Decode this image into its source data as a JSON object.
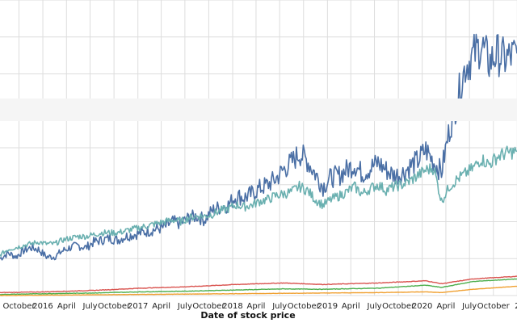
{
  "chart_data": {
    "type": "line",
    "title": "",
    "xlabel": "Date of stock price",
    "ylabel": "",
    "grid": true,
    "legend": "none",
    "x_tick_labels": [
      "October",
      "2016",
      "April",
      "July",
      "October",
      "2017",
      "April",
      "July",
      "October",
      "2018",
      "April",
      "July",
      "October",
      "2019",
      "April",
      "July",
      "October",
      "2020",
      "April",
      "July",
      "October",
      "2"
    ],
    "x_ticks": [
      "2015-10-01",
      "2016-01-01",
      "2016-04-01",
      "2016-07-01",
      "2016-10-01",
      "2017-01-01",
      "2017-04-01",
      "2017-07-01",
      "2017-10-01",
      "2018-01-01",
      "2018-04-01",
      "2018-07-01",
      "2018-10-01",
      "2019-01-01",
      "2019-04-01",
      "2019-07-01",
      "2019-10-01",
      "2020-01-01",
      "2020-04-01",
      "2020-07-01",
      "2020-10-01",
      "2021-01-01"
    ],
    "xlim": [
      "2015-07-20",
      "2020-12-31"
    ],
    "ylim": [
      0,
      8
    ],
    "series": [
      {
        "color": "#4a6fa5",
        "points": [
          [
            "2015-07-20",
            1.0
          ],
          [
            "2015-08-20",
            1.15
          ],
          [
            "2015-09-20",
            1.05
          ],
          [
            "2015-10-15",
            1.2
          ],
          [
            "2015-11-15",
            1.3
          ],
          [
            "2015-12-15",
            1.25
          ],
          [
            "2016-01-15",
            1.05
          ],
          [
            "2016-02-15",
            1.05
          ],
          [
            "2016-03-15",
            1.2
          ],
          [
            "2016-04-15",
            1.3
          ],
          [
            "2016-05-15",
            1.35
          ],
          [
            "2016-06-15",
            1.3
          ],
          [
            "2016-07-15",
            1.45
          ],
          [
            "2016-08-15",
            1.5
          ],
          [
            "2016-09-15",
            1.55
          ],
          [
            "2016-10-15",
            1.5
          ],
          [
            "2016-11-15",
            1.6
          ],
          [
            "2016-12-15",
            1.65
          ],
          [
            "2017-01-15",
            1.7
          ],
          [
            "2017-02-15",
            1.75
          ],
          [
            "2017-03-15",
            1.8
          ],
          [
            "2017-04-15",
            1.85
          ],
          [
            "2017-05-15",
            2.0
          ],
          [
            "2017-06-15",
            1.95
          ],
          [
            "2017-07-15",
            2.1
          ],
          [
            "2017-08-15",
            2.15
          ],
          [
            "2017-09-15",
            2.05
          ],
          [
            "2017-10-15",
            2.3
          ],
          [
            "2017-11-15",
            2.4
          ],
          [
            "2017-12-15",
            2.45
          ],
          [
            "2018-01-15",
            2.7
          ],
          [
            "2018-02-15",
            2.65
          ],
          [
            "2018-03-15",
            2.75
          ],
          [
            "2018-04-15",
            2.9
          ],
          [
            "2018-05-15",
            3.0
          ],
          [
            "2018-06-15",
            3.15
          ],
          [
            "2018-07-15",
            3.4
          ],
          [
            "2018-08-15",
            3.6
          ],
          [
            "2018-09-15",
            3.85
          ],
          [
            "2018-10-15",
            3.65
          ],
          [
            "2018-11-15",
            3.3
          ],
          [
            "2018-12-15",
            2.95
          ],
          [
            "2019-01-15",
            3.2
          ],
          [
            "2019-02-15",
            3.25
          ],
          [
            "2019-03-15",
            3.4
          ],
          [
            "2019-04-15",
            3.55
          ],
          [
            "2019-05-15",
            3.3
          ],
          [
            "2019-06-15",
            3.45
          ],
          [
            "2019-07-15",
            3.6
          ],
          [
            "2019-08-15",
            3.4
          ],
          [
            "2019-09-15",
            3.25
          ],
          [
            "2019-10-15",
            3.3
          ],
          [
            "2019-11-15",
            3.5
          ],
          [
            "2019-12-15",
            3.65
          ],
          [
            "2020-01-15",
            3.95
          ],
          [
            "2020-02-15",
            3.6
          ],
          [
            "2020-03-15",
            3.35
          ],
          [
            "2020-04-15",
            4.5
          ],
          [
            "2020-05-15",
            5.3
          ],
          [
            "2020-06-15",
            6.2
          ],
          [
            "2020-07-15",
            6.5
          ],
          [
            "2020-08-15",
            6.8
          ],
          [
            "2020-09-15",
            6.3
          ],
          [
            "2020-10-15",
            6.55
          ],
          [
            "2020-11-15",
            6.4
          ],
          [
            "2020-12-31",
            6.55
          ]
        ]
      },
      {
        "color": "#6ab0b0",
        "points": [
          [
            "2015-07-20",
            1.1
          ],
          [
            "2015-08-20",
            1.25
          ],
          [
            "2015-09-20",
            1.3
          ],
          [
            "2015-10-15",
            1.35
          ],
          [
            "2015-11-15",
            1.4
          ],
          [
            "2015-12-15",
            1.45
          ],
          [
            "2016-01-15",
            1.4
          ],
          [
            "2016-02-15",
            1.4
          ],
          [
            "2016-03-15",
            1.5
          ],
          [
            "2016-04-15",
            1.55
          ],
          [
            "2016-05-15",
            1.6
          ],
          [
            "2016-06-15",
            1.6
          ],
          [
            "2016-07-15",
            1.65
          ],
          [
            "2016-08-15",
            1.7
          ],
          [
            "2016-09-15",
            1.7
          ],
          [
            "2016-10-15",
            1.7
          ],
          [
            "2016-11-15",
            1.75
          ],
          [
            "2016-12-15",
            1.8
          ],
          [
            "2017-01-15",
            1.85
          ],
          [
            "2017-02-15",
            1.9
          ],
          [
            "2017-03-15",
            1.95
          ],
          [
            "2017-04-15",
            2.0
          ],
          [
            "2017-05-15",
            2.05
          ],
          [
            "2017-06-15",
            2.0
          ],
          [
            "2017-07-15",
            2.1
          ],
          [
            "2017-08-15",
            2.15
          ],
          [
            "2017-09-15",
            2.15
          ],
          [
            "2017-10-15",
            2.2
          ],
          [
            "2017-11-15",
            2.3
          ],
          [
            "2017-12-15",
            2.35
          ],
          [
            "2018-01-15",
            2.45
          ],
          [
            "2018-02-15",
            2.4
          ],
          [
            "2018-03-15",
            2.45
          ],
          [
            "2018-04-15",
            2.55
          ],
          [
            "2018-05-15",
            2.6
          ],
          [
            "2018-06-15",
            2.7
          ],
          [
            "2018-07-15",
            2.75
          ],
          [
            "2018-08-15",
            2.8
          ],
          [
            "2018-09-15",
            2.95
          ],
          [
            "2018-10-15",
            2.85
          ],
          [
            "2018-11-15",
            2.6
          ],
          [
            "2018-12-15",
            2.45
          ],
          [
            "2019-01-15",
            2.6
          ],
          [
            "2019-02-15",
            2.7
          ],
          [
            "2019-03-15",
            2.8
          ],
          [
            "2019-04-15",
            2.95
          ],
          [
            "2019-05-15",
            2.75
          ],
          [
            "2019-06-15",
            2.9
          ],
          [
            "2019-07-15",
            3.0
          ],
          [
            "2019-08-15",
            2.85
          ],
          [
            "2019-09-15",
            2.95
          ],
          [
            "2019-10-15",
            3.0
          ],
          [
            "2019-11-15",
            3.1
          ],
          [
            "2019-12-15",
            3.25
          ],
          [
            "2020-01-15",
            3.4
          ],
          [
            "2020-02-15",
            3.45
          ],
          [
            "2020-03-15",
            2.55
          ],
          [
            "2020-04-15",
            2.95
          ],
          [
            "2020-05-15",
            3.15
          ],
          [
            "2020-06-15",
            3.3
          ],
          [
            "2020-07-15",
            3.45
          ],
          [
            "2020-08-15",
            3.7
          ],
          [
            "2020-09-15",
            3.55
          ],
          [
            "2020-10-15",
            3.75
          ],
          [
            "2020-11-15",
            3.85
          ],
          [
            "2020-12-31",
            3.9
          ]
        ]
      },
      {
        "color": "#d9534f",
        "points": [
          [
            "2015-07-20",
            0.08
          ],
          [
            "2016-01-15",
            0.1
          ],
          [
            "2016-07-15",
            0.14
          ],
          [
            "2017-01-15",
            0.2
          ],
          [
            "2017-07-15",
            0.24
          ],
          [
            "2018-01-15",
            0.3
          ],
          [
            "2018-07-15",
            0.34
          ],
          [
            "2018-12-15",
            0.3
          ],
          [
            "2019-07-15",
            0.34
          ],
          [
            "2020-01-15",
            0.4
          ],
          [
            "2020-03-15",
            0.32
          ],
          [
            "2020-07-15",
            0.45
          ],
          [
            "2020-12-31",
            0.52
          ]
        ]
      },
      {
        "color": "#4cae4c",
        "points": [
          [
            "2015-07-20",
            0.03
          ],
          [
            "2016-01-15",
            0.05
          ],
          [
            "2016-07-15",
            0.07
          ],
          [
            "2017-01-15",
            0.1
          ],
          [
            "2017-07-15",
            0.12
          ],
          [
            "2018-01-15",
            0.15
          ],
          [
            "2018-07-15",
            0.18
          ],
          [
            "2018-12-15",
            0.17
          ],
          [
            "2019-07-15",
            0.2
          ],
          [
            "2020-01-15",
            0.28
          ],
          [
            "2020-03-15",
            0.22
          ],
          [
            "2020-07-15",
            0.38
          ],
          [
            "2020-12-31",
            0.45
          ]
        ]
      },
      {
        "color": "#f0a030",
        "points": [
          [
            "2015-07-20",
            0.0
          ],
          [
            "2016-01-15",
            0.01
          ],
          [
            "2016-07-15",
            0.02
          ],
          [
            "2017-01-15",
            0.03
          ],
          [
            "2017-07-15",
            0.04
          ],
          [
            "2018-01-15",
            0.05
          ],
          [
            "2018-07-15",
            0.06
          ],
          [
            "2019-01-15",
            0.07
          ],
          [
            "2019-07-15",
            0.08
          ],
          [
            "2020-01-15",
            0.1
          ],
          [
            "2020-03-15",
            0.08
          ],
          [
            "2020-07-15",
            0.17
          ],
          [
            "2020-12-31",
            0.25
          ]
        ]
      }
    ]
  }
}
